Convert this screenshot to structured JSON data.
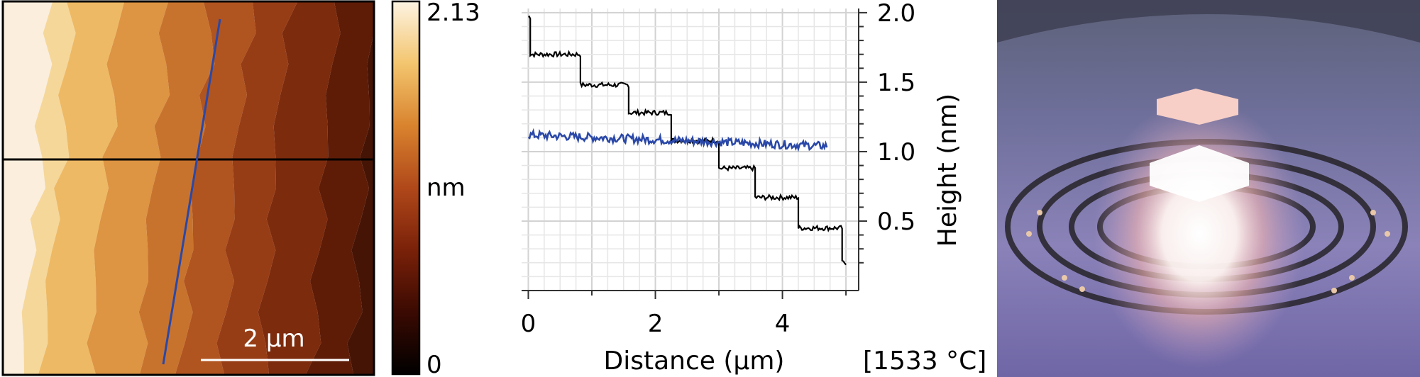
{
  "afm_image": {
    "scalebar_label": "2 µm",
    "colorbar": {
      "max_label": "2.13",
      "min_label": "0",
      "unit_label": "nm"
    },
    "colormap": [
      "#000000",
      "#3b0a02",
      "#7a2109",
      "#b0481a",
      "#d9832e",
      "#f3c56e",
      "#fdf3e2"
    ],
    "line_colors": {
      "horizontal": "#000000",
      "diagonal": "#2a48a8"
    }
  },
  "chart_data": {
    "type": "line",
    "xlabel": "Distance (µm)",
    "ylabel": "Height (nm)",
    "xlim": [
      -0.05,
      5.2
    ],
    "ylim": [
      0.0,
      2.03
    ],
    "x_ticks": [
      0,
      2,
      4
    ],
    "y_ticks": [
      0.5,
      1.0,
      1.5,
      2.0
    ],
    "y_axis_side": "right",
    "grid": true,
    "series": [
      {
        "color": "#000000",
        "steps": [
          {
            "x_start": 0.0,
            "x_end": 0.03,
            "y": 1.97
          },
          {
            "x_start": 0.03,
            "x_end": 0.82,
            "y": 1.7
          },
          {
            "x_start": 0.82,
            "x_end": 1.58,
            "y": 1.48
          },
          {
            "x_start": 1.58,
            "x_end": 2.25,
            "y": 1.28
          },
          {
            "x_start": 2.25,
            "x_end": 3.0,
            "y": 1.08
          },
          {
            "x_start": 3.0,
            "x_end": 3.57,
            "y": 0.88
          },
          {
            "x_start": 3.57,
            "x_end": 4.25,
            "y": 0.67
          },
          {
            "x_start": 4.25,
            "x_end": 4.94,
            "y": 0.45
          },
          {
            "x_start": 4.94,
            "x_end": 5.0,
            "y": 0.2
          }
        ]
      },
      {
        "color": "#2a48a8",
        "x_range": [
          0.0,
          4.7
        ],
        "y_start": 1.12,
        "y_end": 1.04
      }
    ]
  },
  "photo": {
    "caption": "[1533 °C]"
  }
}
